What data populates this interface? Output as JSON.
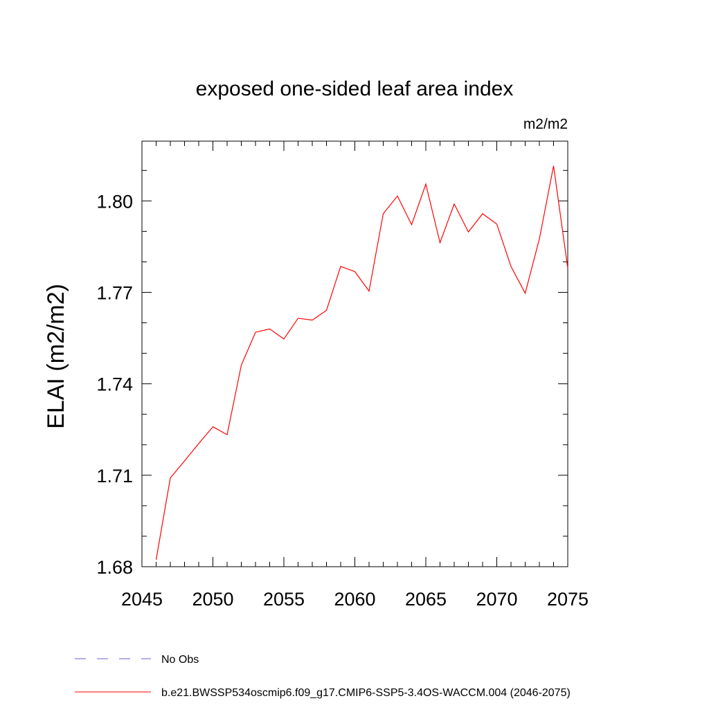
{
  "chart_data": {
    "type": "line",
    "title": "exposed one-sided leaf area index",
    "units": "m2/m2",
    "ylabel": "ELAI  (m2/m2)",
    "xlabel": "",
    "xlim": [
      2045,
      2075
    ],
    "ylim": [
      1.68,
      1.8196
    ],
    "x_ticks": [
      2045,
      2050,
      2055,
      2060,
      2065,
      2070,
      2075
    ],
    "x_tick_labels": [
      "2045",
      "2050",
      "2055",
      "2060",
      "2065",
      "2070",
      "2075"
    ],
    "y_ticks": [
      1.68,
      1.71,
      1.74,
      1.77,
      1.8
    ],
    "y_tick_labels": [
      "1.68",
      "1.71",
      "1.74",
      "1.77",
      "1.80"
    ],
    "grid": false,
    "legend_position": "bottom",
    "legend": [
      {
        "label": "No Obs",
        "style": "dashed",
        "color": "#6a5acd"
      },
      {
        "label": "b.e21.BWSSP534oscmip6.f09_g17.CMIP6-SSP5-3.4OS-WACCM.004 (2046-2075)",
        "style": "solid",
        "color": "#ff0000"
      }
    ],
    "series": [
      {
        "name": "b.e21.BWSSP534oscmip6.f09_g17.CMIP6-SSP5-3.4OS-WACCM.004 (2046-2075)",
        "color": "#ff0000",
        "x": [
          2046,
          2047,
          2048,
          2049,
          2050,
          2051,
          2052,
          2053,
          2054,
          2055,
          2056,
          2057,
          2058,
          2059,
          2060,
          2061,
          2062,
          2063,
          2064,
          2065,
          2066,
          2067,
          2068,
          2069,
          2070,
          2071,
          2072,
          2073,
          2074,
          2075
        ],
        "y": [
          1.6823,
          1.7091,
          1.7147,
          1.7204,
          1.7259,
          1.7233,
          1.7461,
          1.7569,
          1.758,
          1.7547,
          1.7615,
          1.7609,
          1.7641,
          1.7785,
          1.7768,
          1.7704,
          1.7958,
          1.8016,
          1.7922,
          1.8055,
          1.7863,
          1.799,
          1.7898,
          1.7958,
          1.7924,
          1.7785,
          1.7697,
          1.7875,
          1.8115,
          1.7779
        ]
      }
    ]
  }
}
